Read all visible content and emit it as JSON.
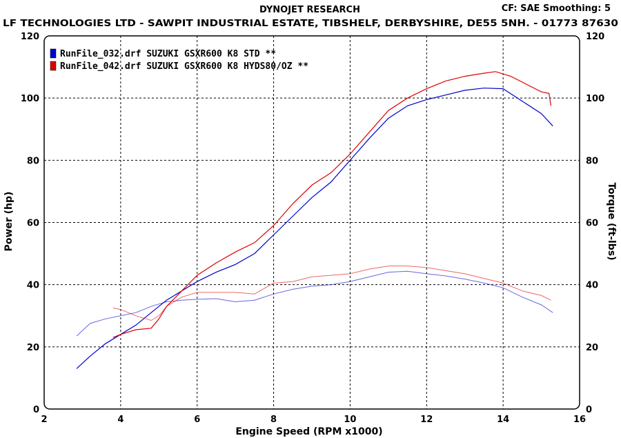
{
  "header": {
    "title": "DYNOJET RESEARCH",
    "settings": "CF: SAE  Smoothing: 5",
    "company": "LF TECHNOLOGIES LTD - SAWPIT INDUSTRIAL ESTATE, TIBSHELF, DERBYSHIRE, DE55 5NH.  - 01773 87630"
  },
  "chart_data": {
    "type": "line",
    "xlabel": "Engine Speed (RPM x1000)",
    "ylabel": "Power (hp)",
    "y2label": "Torque (ft-lbs)",
    "xlim": [
      2,
      16
    ],
    "ylim": [
      0,
      120
    ],
    "y2lim": [
      0,
      120
    ],
    "xticks": [
      2,
      4,
      6,
      8,
      10,
      12,
      14,
      16
    ],
    "yticks": [
      0,
      20,
      40,
      60,
      80,
      100,
      120
    ],
    "y2ticks": [
      0,
      20,
      40,
      60,
      80,
      100,
      120
    ],
    "grid": true,
    "legend_position": "top-left",
    "series": [
      {
        "name": "RunFile_032.drf SUZUKI GSXR600 K8 STD **",
        "color": "#0000cc",
        "power": {
          "x": [
            2.85,
            3.2,
            3.6,
            4.0,
            4.4,
            4.8,
            5.2,
            5.6,
            6.0,
            6.5,
            7.0,
            7.5,
            8.0,
            8.5,
            9.0,
            9.5,
            10.0,
            10.5,
            11.0,
            11.5,
            12.0,
            12.5,
            13.0,
            13.5,
            14.0,
            14.5,
            15.0,
            15.3
          ],
          "y": [
            13,
            17,
            21,
            24,
            27,
            31,
            35,
            38,
            41,
            44,
            46.5,
            50,
            56,
            62,
            68,
            73,
            80,
            87,
            93.5,
            97.5,
            99.5,
            101,
            102.5,
            103.2,
            103,
            99,
            95,
            91
          ]
        },
        "torque": {
          "x": [
            2.85,
            3.2,
            3.6,
            4.0,
            4.4,
            4.8,
            5.2,
            5.6,
            6.0,
            6.5,
            7.0,
            7.5,
            8.0,
            8.5,
            9.0,
            9.5,
            10.0,
            10.5,
            11.0,
            11.5,
            12.0,
            12.5,
            13.0,
            13.5,
            14.0,
            14.5,
            15.0,
            15.3
          ],
          "y": [
            23.5,
            27.5,
            29,
            30,
            31,
            33,
            34.5,
            35,
            35.3,
            35.5,
            34.5,
            35,
            37,
            38.5,
            39.5,
            40,
            41,
            42.5,
            44,
            44.3,
            43.5,
            42.8,
            41.8,
            40.5,
            39,
            36,
            33.5,
            31
          ]
        }
      },
      {
        "name": "RunFile_042.drf SUZUKI GSXR600 K8 HYDS80/OZ **",
        "color": "#dd0000",
        "power": {
          "x": [
            3.8,
            4.0,
            4.4,
            4.8,
            5.0,
            5.2,
            5.6,
            6.0,
            6.5,
            7.0,
            7.5,
            8.0,
            8.5,
            9.0,
            9.5,
            10.0,
            10.5,
            11.0,
            11.5,
            12.0,
            12.5,
            13.0,
            13.5,
            13.8,
            14.2,
            14.6,
            15.0,
            15.2,
            15.25
          ],
          "y": [
            23,
            24,
            25.5,
            26,
            29,
            33,
            38,
            43,
            47,
            50.5,
            53.5,
            59,
            66,
            72,
            76,
            82,
            89,
            96,
            100,
            103,
            105.5,
            107,
            108,
            108.5,
            107,
            104.5,
            102,
            101.5,
            97.5
          ]
        },
        "torque": {
          "x": [
            3.8,
            4.0,
            4.4,
            4.8,
            5.0,
            5.2,
            5.6,
            6.0,
            6.5,
            7.0,
            7.5,
            8.0,
            8.5,
            9.0,
            9.5,
            10.0,
            10.5,
            11.0,
            11.5,
            12.0,
            12.5,
            13.0,
            13.5,
            14.0,
            14.5,
            15.0,
            15.25
          ],
          "y": [
            32.5,
            32,
            30,
            28.5,
            30,
            33,
            36,
            37.5,
            37.5,
            37.5,
            37,
            40.5,
            41,
            42.5,
            43,
            43.5,
            45,
            46,
            46,
            45.5,
            44.5,
            43.5,
            42,
            40.5,
            38,
            36.5,
            35
          ]
        }
      }
    ]
  }
}
